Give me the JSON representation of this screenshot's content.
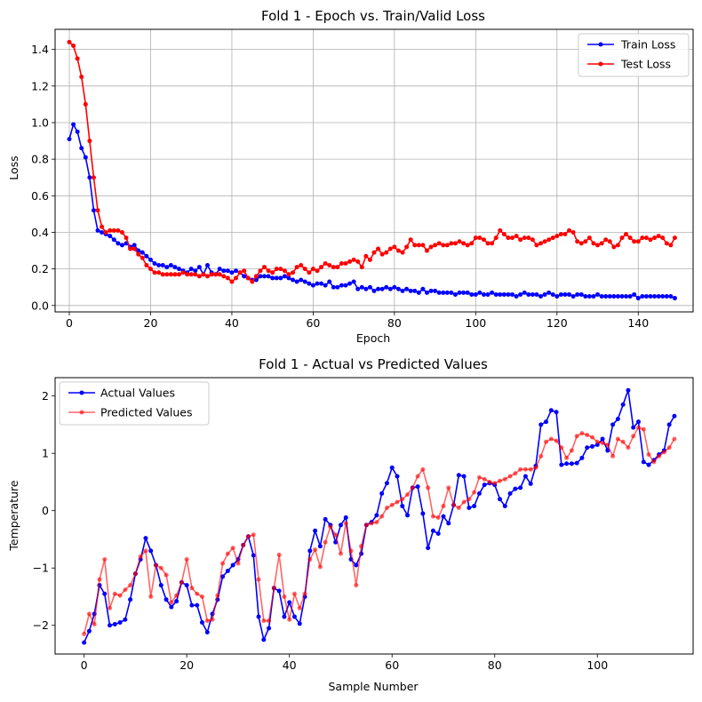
{
  "chart_data": [
    {
      "type": "line",
      "title": "Fold 1 - Epoch vs. Train/Valid Loss",
      "xlabel": "Epoch",
      "ylabel": "Loss",
      "xlim": [
        -3.5,
        153.5
      ],
      "ylim": [
        -0.035,
        1.51
      ],
      "xticks": [
        0,
        20,
        40,
        60,
        80,
        100,
        120,
        140
      ],
      "yticks": [
        0.0,
        0.2,
        0.4,
        0.6,
        0.8,
        1.0,
        1.2,
        1.4
      ],
      "ytick_labels": [
        "0.0",
        "0.2",
        "0.4",
        "0.6",
        "0.8",
        "1.0",
        "1.2",
        "1.4"
      ],
      "grid": true,
      "legend": "top-right",
      "series": [
        {
          "name": "Train Loss",
          "color": "#0000ff",
          "values": [
            0.91,
            0.99,
            0.95,
            0.86,
            0.81,
            0.7,
            0.52,
            0.41,
            0.4,
            0.39,
            0.38,
            0.36,
            0.34,
            0.33,
            0.34,
            0.32,
            0.33,
            0.3,
            0.29,
            0.27,
            0.25,
            0.23,
            0.22,
            0.22,
            0.21,
            0.22,
            0.21,
            0.2,
            0.19,
            0.18,
            0.2,
            0.19,
            0.21,
            0.17,
            0.22,
            0.18,
            0.17,
            0.2,
            0.19,
            0.19,
            0.18,
            0.19,
            0.18,
            0.16,
            0.15,
            0.14,
            0.14,
            0.16,
            0.16,
            0.16,
            0.15,
            0.15,
            0.15,
            0.16,
            0.15,
            0.14,
            0.13,
            0.14,
            0.13,
            0.12,
            0.11,
            0.12,
            0.12,
            0.11,
            0.13,
            0.1,
            0.1,
            0.11,
            0.11,
            0.12,
            0.13,
            0.09,
            0.1,
            0.09,
            0.1,
            0.08,
            0.09,
            0.09,
            0.1,
            0.09,
            0.1,
            0.09,
            0.08,
            0.09,
            0.08,
            0.08,
            0.07,
            0.09,
            0.07,
            0.08,
            0.08,
            0.07,
            0.07,
            0.07,
            0.07,
            0.06,
            0.07,
            0.07,
            0.07,
            0.06,
            0.06,
            0.07,
            0.06,
            0.06,
            0.07,
            0.06,
            0.06,
            0.06,
            0.06,
            0.06,
            0.05,
            0.06,
            0.07,
            0.06,
            0.06,
            0.06,
            0.05,
            0.06,
            0.07,
            0.06,
            0.05,
            0.06,
            0.06,
            0.06,
            0.05,
            0.06,
            0.06,
            0.05,
            0.05,
            0.05,
            0.06,
            0.05,
            0.05,
            0.05,
            0.05,
            0.05,
            0.05,
            0.05,
            0.05,
            0.06,
            0.04,
            0.05,
            0.05,
            0.05,
            0.05,
            0.05,
            0.05,
            0.05,
            0.05,
            0.04
          ]
        },
        {
          "name": "Test Loss",
          "color": "#ff0000",
          "values": [
            1.44,
            1.42,
            1.35,
            1.25,
            1.1,
            0.9,
            0.7,
            0.52,
            0.43,
            0.4,
            0.41,
            0.41,
            0.41,
            0.4,
            0.37,
            0.31,
            0.31,
            0.28,
            0.26,
            0.22,
            0.2,
            0.18,
            0.18,
            0.17,
            0.17,
            0.17,
            0.17,
            0.17,
            0.18,
            0.17,
            0.17,
            0.17,
            0.16,
            0.17,
            0.16,
            0.17,
            0.17,
            0.17,
            0.16,
            0.15,
            0.13,
            0.15,
            0.18,
            0.19,
            0.15,
            0.13,
            0.16,
            0.19,
            0.21,
            0.19,
            0.18,
            0.2,
            0.2,
            0.19,
            0.17,
            0.18,
            0.21,
            0.22,
            0.2,
            0.18,
            0.2,
            0.19,
            0.21,
            0.23,
            0.22,
            0.21,
            0.21,
            0.23,
            0.23,
            0.24,
            0.25,
            0.24,
            0.21,
            0.27,
            0.25,
            0.29,
            0.31,
            0.28,
            0.29,
            0.31,
            0.32,
            0.3,
            0.29,
            0.32,
            0.36,
            0.33,
            0.33,
            0.33,
            0.3,
            0.32,
            0.33,
            0.34,
            0.33,
            0.33,
            0.34,
            0.34,
            0.35,
            0.34,
            0.33,
            0.34,
            0.37,
            0.37,
            0.36,
            0.34,
            0.34,
            0.37,
            0.41,
            0.39,
            0.37,
            0.37,
            0.38,
            0.36,
            0.37,
            0.37,
            0.36,
            0.33,
            0.34,
            0.35,
            0.36,
            0.37,
            0.38,
            0.39,
            0.39,
            0.41,
            0.4,
            0.35,
            0.34,
            0.35,
            0.37,
            0.34,
            0.33,
            0.34,
            0.36,
            0.35,
            0.32,
            0.33,
            0.37,
            0.39,
            0.37,
            0.35,
            0.35,
            0.37,
            0.37,
            0.36,
            0.37,
            0.38,
            0.37,
            0.34,
            0.33,
            0.37
          ]
        }
      ]
    },
    {
      "type": "line",
      "title": "Fold 1 - Actual vs Predicted Values",
      "xlabel": "Sample Number",
      "ylabel": "Temperature",
      "xlim": [
        -5.65,
        118.65
      ],
      "ylim": [
        -2.5,
        2.32
      ],
      "xticks": [
        0,
        20,
        40,
        60,
        80,
        100
      ],
      "yticks": [
        -2,
        -1,
        0,
        1,
        2
      ],
      "ytick_labels": [
        "−2",
        "−1",
        "0",
        "1",
        "2"
      ],
      "grid": false,
      "legend": "top-left",
      "series": [
        {
          "name": "Actual Values",
          "color": "#0000ff",
          "values": [
            -2.3,
            -2.1,
            -1.8,
            -1.3,
            -1.45,
            -2.0,
            -1.98,
            -1.95,
            -1.9,
            -1.55,
            -1.1,
            -0.85,
            -0.48,
            -0.7,
            -0.95,
            -1.3,
            -1.55,
            -1.68,
            -1.58,
            -1.25,
            -1.3,
            -1.65,
            -1.65,
            -1.95,
            -2.12,
            -1.8,
            -1.55,
            -1.15,
            -1.05,
            -0.95,
            -0.85,
            -0.6,
            -0.45,
            -0.78,
            -1.85,
            -2.25,
            -2.05,
            -1.35,
            -1.4,
            -1.85,
            -1.6,
            -1.85,
            -1.97,
            -1.5,
            -0.7,
            -0.35,
            -0.62,
            -0.15,
            -0.25,
            -0.55,
            -0.25,
            -0.12,
            -0.85,
            -0.95,
            -0.75,
            -0.25,
            -0.2,
            -0.08,
            0.3,
            0.48,
            0.75,
            0.6,
            0.08,
            -0.08,
            0.4,
            0.42,
            -0.05,
            -0.65,
            -0.35,
            -0.4,
            -0.1,
            -0.22,
            0.1,
            0.62,
            0.6,
            0.05,
            0.08,
            0.3,
            0.45,
            0.48,
            0.45,
            0.2,
            0.08,
            0.3,
            0.38,
            0.4,
            0.6,
            0.47,
            0.78,
            1.5,
            1.55,
            1.75,
            1.72,
            0.8,
            0.82,
            0.82,
            0.83,
            0.92,
            1.1,
            1.12,
            1.15,
            1.25,
            1.05,
            1.5,
            1.6,
            1.85,
            2.1,
            1.45,
            1.55,
            0.85,
            0.8,
            0.88,
            0.98,
            1.05,
            1.5,
            1.65
          ]
        },
        {
          "name": "Predicted Values",
          "color": "#ff0000",
          "values": [
            -2.15,
            -1.8,
            -1.98,
            -1.2,
            -0.85,
            -1.7,
            -1.45,
            -1.48,
            -1.38,
            -1.3,
            -1.1,
            -0.8,
            -0.7,
            -1.5,
            -0.95,
            -1.0,
            -1.12,
            -1.6,
            -1.48,
            -1.25,
            -0.85,
            -1.35,
            -1.45,
            -1.5,
            -1.92,
            -1.9,
            -1.48,
            -0.92,
            -0.75,
            -0.65,
            -0.92,
            -0.6,
            -0.45,
            -0.42,
            -1.2,
            -1.92,
            -1.92,
            -1.35,
            -0.77,
            -1.5,
            -1.9,
            -1.45,
            -1.7,
            -1.45,
            -0.85,
            -0.68,
            -0.98,
            -0.55,
            -0.28,
            -0.42,
            -0.75,
            -0.22,
            -0.7,
            -1.3,
            -0.62,
            -0.25,
            -0.22,
            -0.2,
            -0.1,
            0.05,
            0.1,
            0.15,
            0.2,
            0.28,
            0.4,
            0.6,
            0.72,
            0.4,
            -0.1,
            -0.12,
            0.08,
            0.4,
            0.1,
            0.05,
            0.15,
            0.2,
            0.32,
            0.58,
            0.55,
            0.5,
            0.48,
            0.52,
            0.55,
            0.6,
            0.65,
            0.72,
            0.72,
            0.72,
            0.75,
            0.95,
            1.2,
            1.25,
            1.22,
            1.1,
            0.92,
            1.05,
            1.3,
            1.35,
            1.32,
            1.28,
            1.2,
            1.18,
            1.15,
            0.95,
            1.25,
            1.2,
            1.1,
            1.3,
            1.45,
            1.42,
            0.98,
            0.85,
            0.95,
            1.02,
            1.1,
            1.25
          ]
        }
      ]
    }
  ]
}
